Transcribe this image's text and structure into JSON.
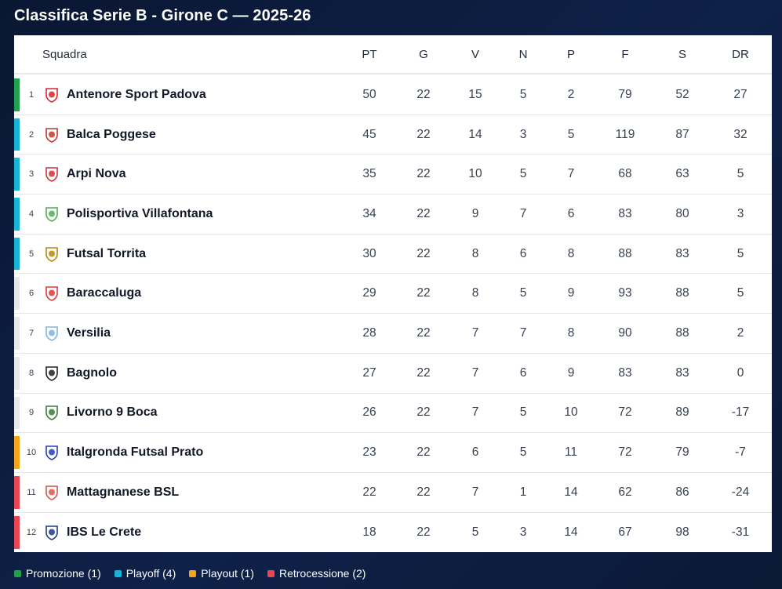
{
  "title": "Classifica Serie B - Girone C — 2025-26",
  "columns": {
    "team": "Squadra",
    "pt": "PT",
    "g": "G",
    "v": "V",
    "n": "N",
    "p": "P",
    "f": "F",
    "s": "S",
    "dr": "DR"
  },
  "status_colors": {
    "promozione": "#22a04b",
    "playoff": "#17b4d8",
    "playout": "#f4a51c",
    "retrocessione": "#e9444f",
    "none": "#e5e7eb"
  },
  "rows": [
    {
      "pos": "1",
      "team": "Antenore Sport Padova",
      "crest": "antenore-crest-icon",
      "crest_color": "#d8232a",
      "status": "promozione",
      "pt": "50",
      "g": "22",
      "v": "15",
      "n": "5",
      "p": "2",
      "f": "79",
      "s": "52",
      "dr": "27"
    },
    {
      "pos": "2",
      "team": "Balca Poggese",
      "crest": "balca-crest-icon",
      "crest_color": "#c0392b",
      "status": "playoff",
      "pt": "45",
      "g": "22",
      "v": "14",
      "n": "3",
      "p": "5",
      "f": "119",
      "s": "87",
      "dr": "32"
    },
    {
      "pos": "3",
      "team": "Arpi Nova",
      "crest": "arpi-crest-icon",
      "crest_color": "#c8323c",
      "status": "playoff",
      "pt": "35",
      "g": "22",
      "v": "10",
      "n": "5",
      "p": "7",
      "f": "68",
      "s": "63",
      "dr": "5"
    },
    {
      "pos": "4",
      "team": "Polisportiva Villafontana",
      "crest": "villafontana-crest-icon",
      "crest_color": "#4caf50",
      "status": "playoff",
      "pt": "34",
      "g": "22",
      "v": "9",
      "n": "7",
      "p": "6",
      "f": "83",
      "s": "80",
      "dr": "3"
    },
    {
      "pos": "5",
      "team": "Futsal Torrita",
      "crest": "torrita-crest-icon",
      "crest_color": "#b8860b",
      "status": "playoff",
      "pt": "30",
      "g": "22",
      "v": "8",
      "n": "6",
      "p": "8",
      "f": "88",
      "s": "83",
      "dr": "5"
    },
    {
      "pos": "6",
      "team": "Baraccaluga",
      "crest": "baraccaluga-crest-icon",
      "crest_color": "#d83a3a",
      "status": "none",
      "pt": "29",
      "g": "22",
      "v": "8",
      "n": "5",
      "p": "9",
      "f": "93",
      "s": "88",
      "dr": "5"
    },
    {
      "pos": "7",
      "team": "Versilia",
      "crest": "versilia-crest-icon",
      "crest_color": "#7fb3e0",
      "status": "none",
      "pt": "28",
      "g": "22",
      "v": "7",
      "n": "7",
      "p": "8",
      "f": "90",
      "s": "88",
      "dr": "2"
    },
    {
      "pos": "8",
      "team": "Bagnolo",
      "crest": "bagnolo-crest-icon",
      "crest_color": "#222222",
      "status": "none",
      "pt": "27",
      "g": "22",
      "v": "7",
      "n": "6",
      "p": "9",
      "f": "83",
      "s": "83",
      "dr": "0"
    },
    {
      "pos": "9",
      "team": "Livorno 9 Boca",
      "crest": "livorno-crest-icon",
      "crest_color": "#3b7a3b",
      "status": "none",
      "pt": "26",
      "g": "22",
      "v": "7",
      "n": "5",
      "p": "10",
      "f": "72",
      "s": "89",
      "dr": "-17"
    },
    {
      "pos": "10",
      "team": "Italgronda Futsal Prato",
      "crest": "italgronda-crest-icon",
      "crest_color": "#1f3fbf",
      "status": "playout",
      "pt": "23",
      "g": "22",
      "v": "6",
      "n": "5",
      "p": "11",
      "f": "72",
      "s": "79",
      "dr": "-7"
    },
    {
      "pos": "11",
      "team": "Mattagnanese BSL",
      "crest": "mattagnanese-crest-icon",
      "crest_color": "#d9534f",
      "status": "retrocessione",
      "pt": "22",
      "g": "22",
      "v": "7",
      "n": "1",
      "p": "14",
      "f": "62",
      "s": "86",
      "dr": "-24"
    },
    {
      "pos": "12",
      "team": "IBS Le Crete",
      "crest": "ibs-crest-icon",
      "crest_color": "#1e3a8a",
      "status": "retrocessione",
      "pt": "18",
      "g": "22",
      "v": "5",
      "n": "3",
      "p": "14",
      "f": "67",
      "s": "98",
      "dr": "-31"
    }
  ],
  "legend": [
    {
      "key": "promozione",
      "label": "Promozione (1)"
    },
    {
      "key": "playoff",
      "label": "Playoff (4)"
    },
    {
      "key": "playout",
      "label": "Playout (1)"
    },
    {
      "key": "retrocessione",
      "label": "Retrocessione (2)"
    }
  ]
}
